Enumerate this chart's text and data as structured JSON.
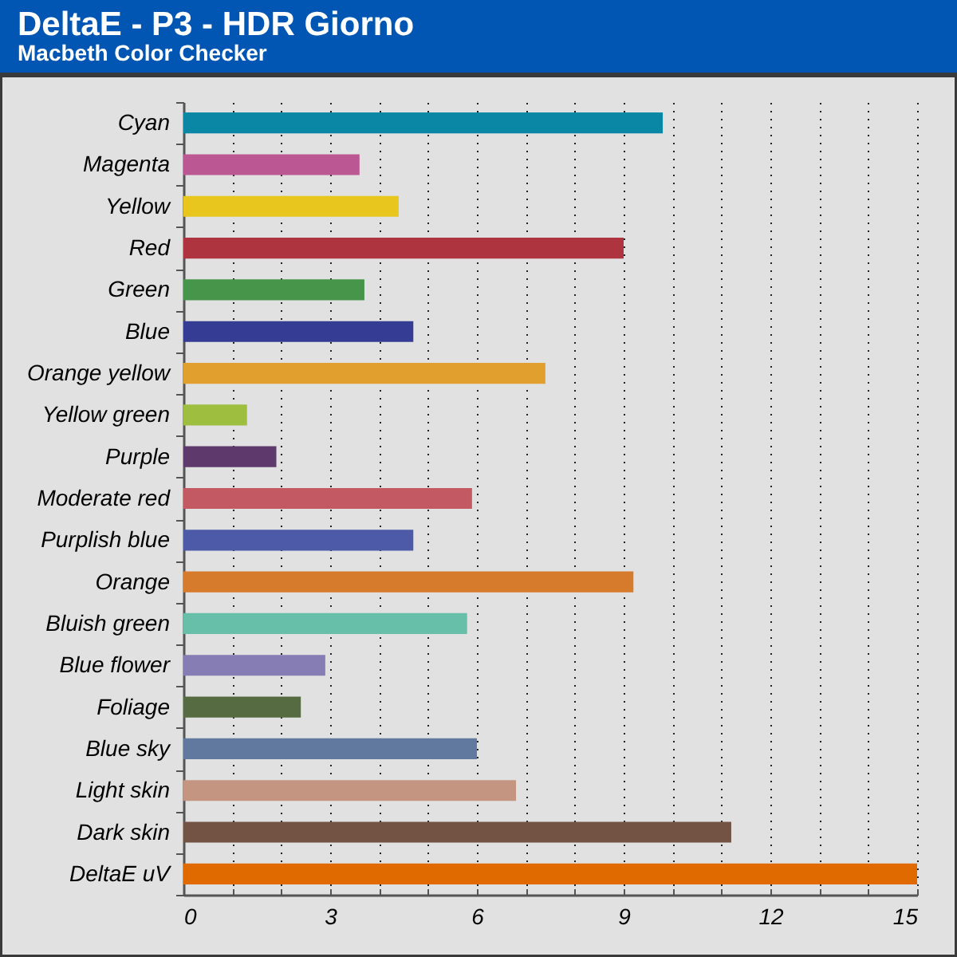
{
  "chart_data": {
    "type": "bar",
    "orientation": "horizontal",
    "title": "DeltaE - P3 - HDR Giorno",
    "subtitle": "Macbeth Color Checker",
    "categories": [
      "Cyan",
      "Magenta",
      "Yellow",
      "Red",
      "Green",
      "Blue",
      "Orange yellow",
      "Yellow green",
      "Purple",
      "Moderate red",
      "Purplish blue",
      "Orange",
      "Bluish green",
      "Blue flower",
      "Foliage",
      "Blue sky",
      "Light skin",
      "Dark skin",
      "DeltaE uV"
    ],
    "values": [
      9.8,
      3.6,
      4.4,
      9.0,
      3.7,
      4.7,
      7.4,
      1.3,
      1.9,
      5.9,
      4.7,
      9.2,
      5.8,
      2.9,
      2.4,
      6.0,
      6.8,
      11.2,
      15.0
    ],
    "colors": [
      "#0a87a4",
      "#bb5792",
      "#e8c61e",
      "#ae353f",
      "#47954b",
      "#353c94",
      "#e1a02e",
      "#9dbe3e",
      "#5e3a6c",
      "#c25963",
      "#4d5aa8",
      "#d67b2c",
      "#68bfa9",
      "#857db3",
      "#566b41",
      "#62799f",
      "#c49682",
      "#735444",
      "#e06a00"
    ],
    "xlim": [
      0,
      15
    ],
    "xticks": [
      0,
      {
        "value": 1,
        "label": null
      },
      {
        "value": 2,
        "label": null
      },
      3,
      {
        "value": 4,
        "label": null
      },
      {
        "value": 5,
        "label": null
      },
      6,
      {
        "value": 7,
        "label": null
      },
      {
        "value": 8,
        "label": null
      },
      9,
      {
        "value": 10,
        "label": null
      },
      {
        "value": 11,
        "label": null
      },
      12,
      {
        "value": 13,
        "label": null
      },
      {
        "value": 14,
        "label": null
      },
      15
    ],
    "grid": "x"
  }
}
